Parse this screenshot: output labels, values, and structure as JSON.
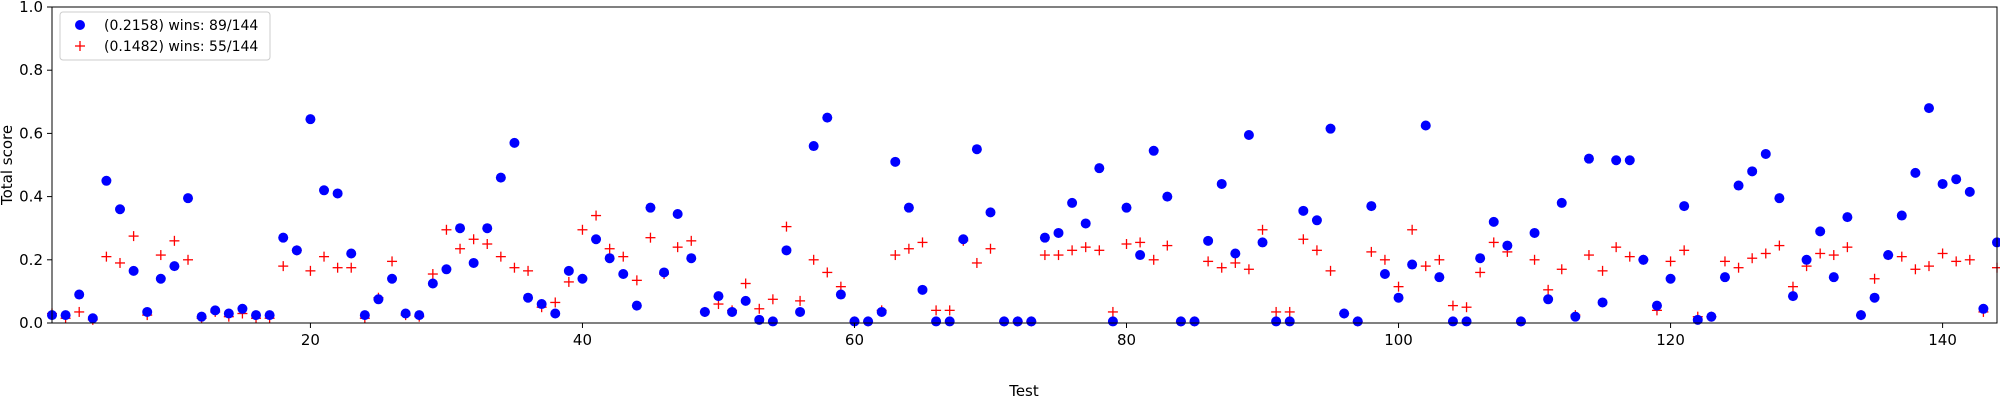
{
  "chart_data": {
    "type": "scatter",
    "title": "",
    "xlabel": "Test",
    "ylabel": "Total score",
    "xlim": [
      1,
      144
    ],
    "ylim": [
      0,
      1
    ],
    "xticks": [
      20,
      40,
      60,
      80,
      100,
      120,
      140
    ],
    "yticks": [
      0.0,
      0.2,
      0.4,
      0.6,
      0.8,
      1.0
    ],
    "grid": false,
    "legend_position": "top-left",
    "series": [
      {
        "name": "(0.2158) wins: 89/144",
        "marker": "circle",
        "color": "#0000ff",
        "x": [
          1,
          2,
          3,
          4,
          5,
          6,
          7,
          8,
          9,
          10,
          11,
          12,
          13,
          14,
          15,
          16,
          17,
          18,
          19,
          20,
          21,
          22,
          23,
          24,
          25,
          26,
          27,
          28,
          29,
          30,
          31,
          32,
          33,
          34,
          35,
          36,
          37,
          38,
          39,
          40,
          41,
          42,
          43,
          44,
          45,
          46,
          47,
          48,
          49,
          50,
          51,
          52,
          53,
          54,
          55,
          56,
          57,
          58,
          59,
          60,
          61,
          62,
          63,
          64,
          65,
          66,
          67,
          68,
          69,
          70,
          71,
          72,
          73,
          74,
          75,
          76,
          77,
          78,
          79,
          80,
          81,
          82,
          83,
          84,
          85,
          86,
          87,
          88,
          89,
          90,
          91,
          92,
          93,
          94,
          95,
          96,
          97,
          98,
          99,
          100,
          101,
          102,
          103,
          104,
          105,
          106,
          107,
          108,
          109,
          110,
          111,
          112,
          113,
          114,
          115,
          116,
          117,
          118,
          119,
          120,
          121,
          122,
          123,
          124,
          125,
          126,
          127,
          128,
          129,
          130,
          131,
          132,
          133,
          134,
          135,
          136,
          137,
          138,
          139,
          140,
          141,
          142,
          143,
          144
        ],
        "y": [
          0.025,
          0.025,
          0.09,
          0.015,
          0.45,
          0.36,
          0.165,
          0.035,
          0.14,
          0.18,
          0.395,
          0.02,
          0.04,
          0.03,
          0.045,
          0.025,
          0.025,
          0.27,
          0.23,
          0.645,
          0.42,
          0.41,
          0.22,
          0.025,
          0.075,
          0.14,
          0.03,
          0.025,
          0.125,
          0.17,
          0.3,
          0.19,
          0.3,
          0.46,
          0.57,
          0.08,
          0.06,
          0.03,
          0.165,
          0.14,
          0.265,
          0.205,
          0.155,
          0.055,
          0.365,
          0.16,
          0.345,
          0.205,
          0.035,
          0.085,
          0.035,
          0.07,
          0.01,
          0.005,
          0.23,
          0.035,
          0.56,
          0.65,
          0.09,
          0.005,
          0.005,
          0.035,
          0.51,
          0.365,
          0.105,
          0.005,
          0.005,
          0.265,
          0.55,
          0.35,
          0.005,
          0.005,
          0.005,
          0.27,
          0.285,
          0.38,
          0.315,
          0.49,
          0.005,
          0.365,
          0.215,
          0.545,
          0.4,
          0.005,
          0.005,
          0.26,
          0.44,
          0.22,
          0.595,
          0.255,
          0.005,
          0.005,
          0.355,
          0.325,
          0.615,
          0.03,
          0.005,
          0.37,
          0.155,
          0.08,
          0.185,
          0.625,
          0.145,
          0.005,
          0.005,
          0.205,
          0.32,
          0.245,
          0.005,
          0.285,
          0.075,
          0.38,
          0.02,
          0.52,
          0.065,
          0.515,
          0.515,
          0.2,
          0.055,
          0.14,
          0.37,
          0.01,
          0.02,
          0.145,
          0.435,
          0.48,
          0.535,
          0.395,
          0.085,
          0.2,
          0.29,
          0.145,
          0.335,
          0.025,
          0.08,
          0.215,
          0.34,
          0.475,
          0.68,
          0.44,
          0.455,
          0.415,
          0.045,
          0.255
        ]
      },
      {
        "name": "(0.1482) wins: 55/144",
        "marker": "plus",
        "color": "#ff0000",
        "x": [
          1,
          2,
          3,
          4,
          5,
          6,
          7,
          8,
          9,
          10,
          11,
          12,
          13,
          14,
          15,
          16,
          17,
          18,
          19,
          20,
          21,
          22,
          23,
          24,
          25,
          26,
          27,
          28,
          29,
          30,
          31,
          32,
          33,
          34,
          35,
          36,
          37,
          38,
          39,
          40,
          41,
          42,
          43,
          44,
          45,
          46,
          47,
          48,
          49,
          50,
          51,
          52,
          53,
          54,
          55,
          56,
          57,
          58,
          59,
          60,
          61,
          62,
          63,
          64,
          65,
          66,
          67,
          68,
          69,
          70,
          71,
          72,
          73,
          74,
          75,
          76,
          77,
          78,
          79,
          80,
          81,
          82,
          83,
          84,
          85,
          86,
          87,
          88,
          89,
          90,
          91,
          92,
          93,
          94,
          95,
          96,
          97,
          98,
          99,
          100,
          101,
          102,
          103,
          104,
          105,
          106,
          107,
          108,
          109,
          110,
          111,
          112,
          113,
          114,
          115,
          116,
          117,
          118,
          119,
          120,
          121,
          122,
          123,
          124,
          125,
          126,
          127,
          128,
          129,
          130,
          131,
          132,
          133,
          134,
          135,
          136,
          137,
          138,
          139,
          140,
          141,
          142,
          143,
          144
        ],
        "y": [
          0.03,
          0.015,
          0.035,
          0.01,
          0.21,
          0.19,
          0.275,
          0.025,
          0.215,
          0.26,
          0.2,
          0.015,
          0.035,
          0.02,
          0.03,
          0.015,
          0.015,
          0.18,
          0.23,
          0.165,
          0.21,
          0.175,
          0.175,
          0.015,
          0.08,
          0.195,
          0.025,
          0.02,
          0.155,
          0.295,
          0.235,
          0.265,
          0.25,
          0.21,
          0.175,
          0.165,
          0.05,
          0.065,
          0.13,
          0.295,
          0.34,
          0.235,
          0.21,
          0.135,
          0.27,
          0.155,
          0.24,
          0.26,
          0.035,
          0.06,
          0.04,
          0.125,
          0.045,
          0.075,
          0.305,
          0.07,
          0.2,
          0.16,
          0.115,
          0.005,
          0.005,
          0.04,
          0.215,
          0.235,
          0.255,
          0.04,
          0.04,
          0.26,
          0.19,
          0.235,
          0.005,
          0.005,
          0.005,
          0.215,
          0.215,
          0.23,
          0.24,
          0.23,
          0.035,
          0.25,
          0.255,
          0.2,
          0.245,
          0.005,
          0.005,
          0.195,
          0.175,
          0.19,
          0.17,
          0.295,
          0.035,
          0.035,
          0.265,
          0.23,
          0.165,
          0.03,
          0.005,
          0.225,
          0.2,
          0.115,
          0.295,
          0.18,
          0.2,
          0.055,
          0.05,
          0.16,
          0.255,
          0.225,
          0.005,
          0.2,
          0.105,
          0.17,
          0.025,
          0.215,
          0.165,
          0.24,
          0.21,
          0.2,
          0.04,
          0.195,
          0.23,
          0.02,
          0.02,
          0.195,
          0.175,
          0.205,
          0.22,
          0.245,
          0.115,
          0.18,
          0.22,
          0.215,
          0.24,
          0.025,
          0.14,
          0.215,
          0.21,
          0.17,
          0.18,
          0.22,
          0.195,
          0.2,
          0.035,
          0.175
        ]
      }
    ]
  }
}
